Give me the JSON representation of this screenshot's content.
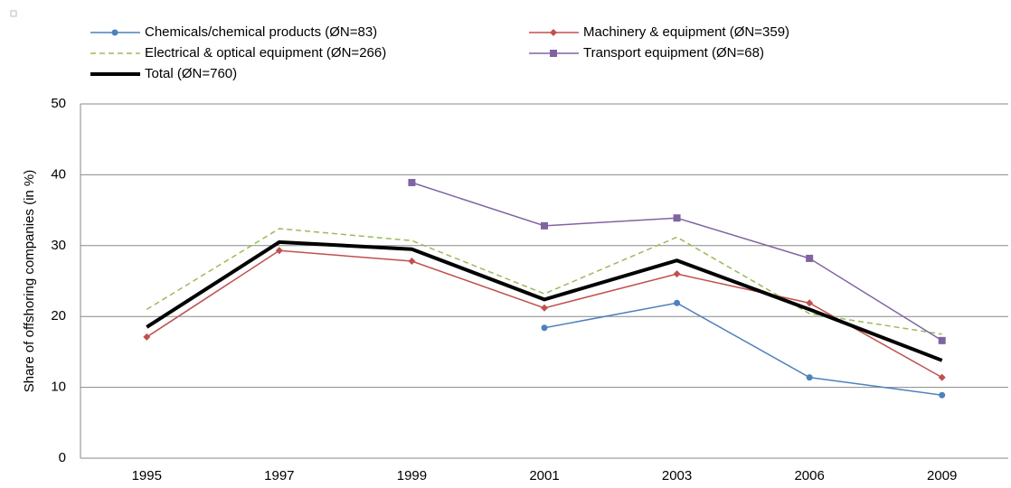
{
  "chart_data": {
    "type": "line",
    "y_label": "Share of offshoring companies (in %)",
    "categories": [
      "1995",
      "1997",
      "1999",
      "2001",
      "2003",
      "2006",
      "2009"
    ],
    "series": [
      {
        "name": "Chemicals/chemical products (ØN=83)",
        "color": "#4f81bd",
        "marker": "circle",
        "values": [
          null,
          null,
          null,
          18.4,
          21.9,
          11.4,
          8.9
        ]
      },
      {
        "name": "Machinery & equipment (ØN=359)",
        "color": "#c0504d",
        "marker": "diamond",
        "values": [
          17.1,
          29.3,
          27.8,
          21.2,
          26.0,
          21.9,
          11.4
        ]
      },
      {
        "name": "Electrical & optical equipment (ØN=266)",
        "color": "#9bbb59",
        "dashed": true,
        "values": [
          21.0,
          32.4,
          30.7,
          23.2,
          31.2,
          20.4,
          17.5
        ]
      },
      {
        "name": "Transport equipment (ØN=68)",
        "color": "#8064a2",
        "marker": "square",
        "values": [
          null,
          null,
          38.9,
          32.8,
          33.9,
          28.2,
          16.6
        ]
      },
      {
        "name": "Total (ØN=760)",
        "color": "#000000",
        "bold": true,
        "values": [
          18.5,
          30.5,
          29.5,
          22.4,
          27.9,
          21.0,
          13.8
        ]
      }
    ],
    "ylim": [
      0,
      50
    ],
    "yticks": [
      0,
      10,
      20,
      30,
      40,
      50
    ],
    "grid": true
  }
}
